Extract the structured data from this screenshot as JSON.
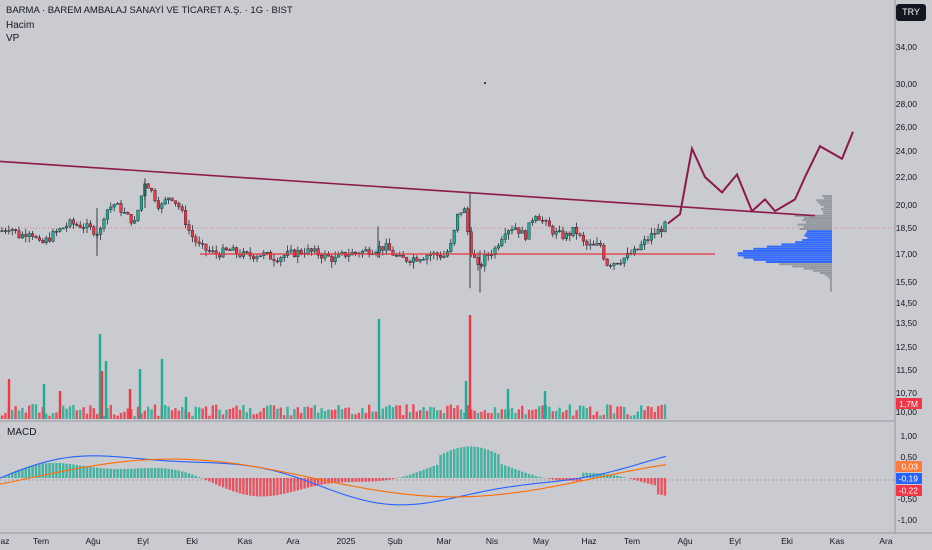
{
  "header": {
    "title": "BARMA · BAREM AMBALAJ SANAYİ VE TİCARET A.Ş. · 1G · BIST",
    "volume_label": "Hacim",
    "vp_label": "VP",
    "currency": "TRY"
  },
  "macd_label": "MACD",
  "colors": {
    "background": "#c9cbd0",
    "up": "#22ab94",
    "down": "#f23645",
    "trendline": "#8c1a4a",
    "support": "#e8333c",
    "macd": "#2962ff",
    "signal": "#ff6d00",
    "vp_value_area": "#2962ff",
    "vp_outside": "#878b94"
  },
  "chart_data": {
    "type": "candlestick",
    "price_axis": {
      "ticks": [
        "34,00",
        "30,00",
        "28,00",
        "26,00",
        "24,00",
        "22,00",
        "20,00",
        "18,50",
        "17,00",
        "15,50",
        "14,50",
        "13,50",
        "12,50",
        "11,50",
        "10,70",
        "10,00"
      ],
      "ylim": [
        9.8,
        35
      ]
    },
    "macd_axis": {
      "ticks": [
        "1,00",
        "0,50",
        "0,00",
        "-0,50",
        "-1,00"
      ],
      "ylim": [
        -1.1,
        1.1
      ]
    },
    "x_labels": [
      "az",
      "Tem",
      "Ağu",
      "Eyl",
      "Eki",
      "Kas",
      "Ara",
      "2025",
      "Şub",
      "Mar",
      "Nis",
      "May",
      "Haz",
      "Tem",
      "Ağu",
      "Eyl",
      "Eki",
      "Kas",
      "Ara"
    ],
    "price_path": [
      [
        0,
        18.3
      ],
      [
        10,
        18.6
      ],
      [
        20,
        18.0
      ],
      [
        30,
        18.4
      ],
      [
        40,
        17.5
      ],
      [
        55,
        18.2
      ],
      [
        70,
        18.8
      ],
      [
        85,
        18.6
      ],
      [
        100,
        18.2
      ],
      [
        105,
        19.6
      ],
      [
        115,
        20.1
      ],
      [
        125,
        19.4
      ],
      [
        135,
        18.8
      ],
      [
        145,
        21.7
      ],
      [
        150,
        21.2
      ],
      [
        160,
        19.8
      ],
      [
        170,
        20.7
      ],
      [
        180,
        19.8
      ],
      [
        190,
        18.2
      ],
      [
        200,
        17.4
      ],
      [
        215,
        17.0
      ],
      [
        230,
        17.2
      ],
      [
        245,
        16.9
      ],
      [
        260,
        17.0
      ],
      [
        275,
        16.8
      ],
      [
        290,
        17.0
      ],
      [
        305,
        17.2
      ],
      [
        320,
        17.0
      ],
      [
        335,
        16.7
      ],
      [
        345,
        17.0
      ],
      [
        360,
        17.1
      ],
      [
        375,
        17.3
      ],
      [
        385,
        17.4
      ],
      [
        400,
        16.7
      ],
      [
        415,
        16.8
      ],
      [
        430,
        17.0
      ],
      [
        445,
        16.9
      ],
      [
        452,
        17.6
      ],
      [
        458,
        19.4
      ],
      [
        464,
        19.8
      ],
      [
        470,
        17.4
      ],
      [
        478,
        16.2
      ],
      [
        485,
        16.8
      ],
      [
        495,
        17.3
      ],
      [
        505,
        18.4
      ],
      [
        515,
        18.6
      ],
      [
        525,
        18.0
      ],
      [
        535,
        19.5
      ],
      [
        545,
        18.8
      ],
      [
        555,
        18.2
      ],
      [
        565,
        18.0
      ],
      [
        575,
        18.4
      ],
      [
        585,
        17.5
      ],
      [
        595,
        17.4
      ],
      [
        600,
        17.6
      ],
      [
        606,
        16.5
      ],
      [
        615,
        16.6
      ],
      [
        625,
        16.8
      ],
      [
        635,
        17.1
      ],
      [
        645,
        17.7
      ],
      [
        652,
        18.1
      ],
      [
        660,
        18.4
      ],
      [
        668,
        18.8
      ]
    ],
    "volume": [
      {
        "x": 100,
        "v": "5,6M",
        "up": true
      },
      {
        "x": 106,
        "v": "3,6M",
        "up": true
      },
      {
        "x": 162,
        "v": "3,7M",
        "up": true
      },
      {
        "x": 379,
        "v": "6,5M",
        "up": true
      },
      {
        "x": 470,
        "v": "6,6M",
        "up": false
      },
      {
        "x": 380,
        "v": "2,3M",
        "up": true
      }
    ],
    "volume_last": "1,7M",
    "macd_last": {
      "hist": "0,03",
      "macd": "-0,19",
      "signal": "-0,22"
    },
    "trendline": {
      "from": [
        0,
        23.2
      ],
      "to": [
        815,
        19.3
      ]
    },
    "support_line": {
      "from": [
        200,
        17.0
      ],
      "to": [
        715,
        17.0
      ]
    },
    "projection": [
      [
        668,
        18.8
      ],
      [
        680,
        19.4
      ],
      [
        692,
        24.2
      ],
      [
        705,
        22.0
      ],
      [
        722,
        20.9
      ],
      [
        737,
        22.2
      ],
      [
        752,
        19.6
      ],
      [
        765,
        20.4
      ],
      [
        775,
        19.6
      ],
      [
        795,
        20.4
      ],
      [
        805,
        22.0
      ],
      [
        820,
        24.4
      ],
      [
        842,
        23.4
      ],
      [
        853,
        25.6
      ]
    ]
  }
}
